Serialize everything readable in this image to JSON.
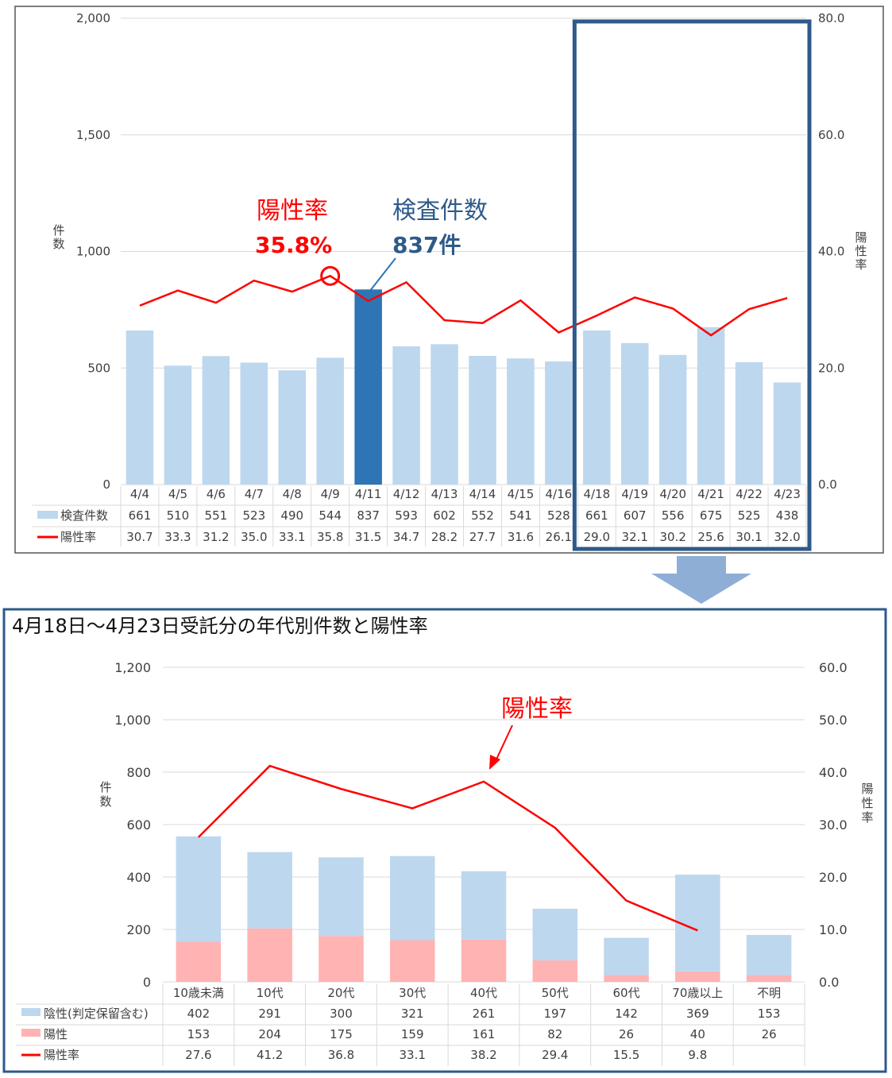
{
  "chart_data": [
    {
      "type": "bar",
      "categories": [
        "4/4",
        "4/5",
        "4/6",
        "4/7",
        "4/8",
        "4/9",
        "4/11",
        "4/12",
        "4/13",
        "4/14",
        "4/15",
        "4/16",
        "4/18",
        "4/19",
        "4/20",
        "4/21",
        "4/22",
        "4/23"
      ],
      "series": [
        {
          "name": "検査件数",
          "type": "bar",
          "axis": "left",
          "color": "#bdd7ee",
          "values": [
            661,
            510,
            551,
            523,
            490,
            544,
            837,
            593,
            602,
            552,
            541,
            528,
            661,
            607,
            556,
            675,
            525,
            438
          ]
        },
        {
          "name": "陽性率",
          "type": "line",
          "axis": "right",
          "color": "#ff0000",
          "values": [
            30.7,
            33.3,
            31.2,
            35.0,
            33.1,
            35.8,
            31.5,
            34.7,
            28.2,
            27.7,
            31.6,
            26.1,
            29.0,
            32.1,
            30.2,
            25.6,
            30.1,
            32.0
          ]
        }
      ],
      "highlight_color": "#2e75b6",
      "highlight_index": 6,
      "ylabel": "件数",
      "y2label": "陽性率",
      "ylim": [
        0,
        2000
      ],
      "y2lim": [
        0,
        80
      ],
      "yticks": [
        "2,000",
        "1,500",
        "1,000",
        "500",
        "0"
      ],
      "y2ticks": [
        "80.0",
        "60.0",
        "40.0",
        "20.0",
        "0.0"
      ],
      "annotations": {
        "rate_title": "陽性率",
        "rate_value": "35.8%",
        "count_title": "検査件数",
        "count_value": "837件"
      },
      "grid": true
    },
    {
      "type": "bar",
      "title": "4月18日～4月23日受託分の年代別件数と陽性率",
      "categories": [
        "10歳未満",
        "10代",
        "20代",
        "30代",
        "40代",
        "50代",
        "60代",
        "70歳以上",
        "不明"
      ],
      "stacked": true,
      "series": [
        {
          "name": "陽性",
          "type": "bar",
          "axis": "left",
          "color": "#ffb3b3",
          "values": [
            153,
            204,
            175,
            159,
            161,
            82,
            26,
            40,
            26
          ]
        },
        {
          "name": "陰性(判定保留含む)",
          "type": "bar",
          "axis": "left",
          "color": "#bdd7ee",
          "values": [
            402,
            291,
            300,
            321,
            261,
            197,
            142,
            369,
            153
          ]
        },
        {
          "name": "陽性率",
          "type": "line",
          "axis": "right",
          "color": "#ff0000",
          "values": [
            27.6,
            41.2,
            36.8,
            33.1,
            38.2,
            29.4,
            15.5,
            9.8,
            null
          ],
          "labels": [
            "27.6",
            "41.2",
            "36.8",
            "33.1",
            "38.2",
            "29.4",
            "15.5",
            "9.8",
            ""
          ]
        }
      ],
      "ylabel": "件数",
      "y2label": "陽性率",
      "ylim": [
        0,
        1200
      ],
      "y2lim": [
        0,
        60
      ],
      "yticks": [
        "1,200",
        "1,000",
        "800",
        "600",
        "400",
        "200",
        "0"
      ],
      "y2ticks": [
        "60.0",
        "50.0",
        "40.0",
        "30.0",
        "20.0",
        "10.0",
        "0.0"
      ],
      "annotations": {
        "rate_title": "陽性率"
      },
      "grid": true
    }
  ]
}
